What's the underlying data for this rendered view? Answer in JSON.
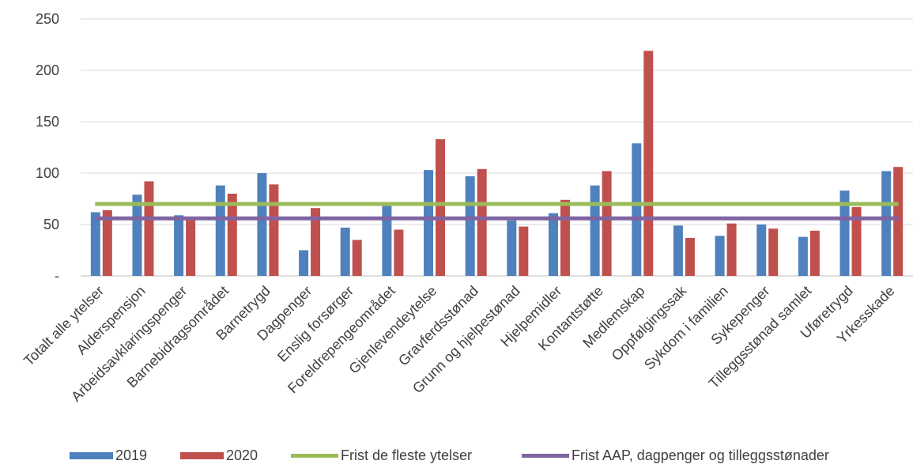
{
  "chart_data": {
    "type": "bar",
    "title": "",
    "xlabel": "",
    "ylabel": "",
    "ylim": [
      0,
      250
    ],
    "yticks": [
      0,
      50,
      100,
      150,
      200,
      250
    ],
    "ytick_labels": [
      "-",
      "50",
      "100",
      "150",
      "200",
      "250"
    ],
    "grid": "horizontal",
    "legend_position": "bottom",
    "categories": [
      "Totalt alle ytelser",
      "Alderspensjon",
      "Arbeidsavklaringspenger",
      "Barnebidragsområdet",
      "Barnetrygd",
      "Dagpenger",
      "Enslig forsørger",
      "Foreldrepengeområdet",
      "Gjenlevendeytelse",
      "Gravferdsstønad",
      "Grunn og hjelpestønad",
      "Hjelpemidler",
      "Kontantstøtte",
      "Medlemskap",
      "Oppfølgingssak",
      "Sykdom i familien",
      "Sykepenger",
      "Tilleggsstønad samlet",
      "Uføretrygd",
      "Yrkesskade"
    ],
    "series": [
      {
        "name": "2019",
        "color": "#4F81BD",
        "values": [
          62,
          79,
          59,
          88,
          100,
          25,
          47,
          68,
          103,
          97,
          54,
          61,
          88,
          129,
          49,
          39,
          50,
          38,
          83,
          102
        ]
      },
      {
        "name": "2020",
        "color": "#C0504D",
        "values": [
          64,
          92,
          57,
          80,
          89,
          66,
          35,
          45,
          133,
          104,
          48,
          74,
          102,
          219,
          37,
          51,
          46,
          44,
          67,
          106
        ]
      }
    ],
    "reference_lines": [
      {
        "name": "Frist de fleste ytelser",
        "value": 70,
        "color": "#9BBB59"
      },
      {
        "name": "Frist AAP, dagpenger og tilleggsstønader",
        "value": 56,
        "color": "#8064A2"
      }
    ]
  }
}
